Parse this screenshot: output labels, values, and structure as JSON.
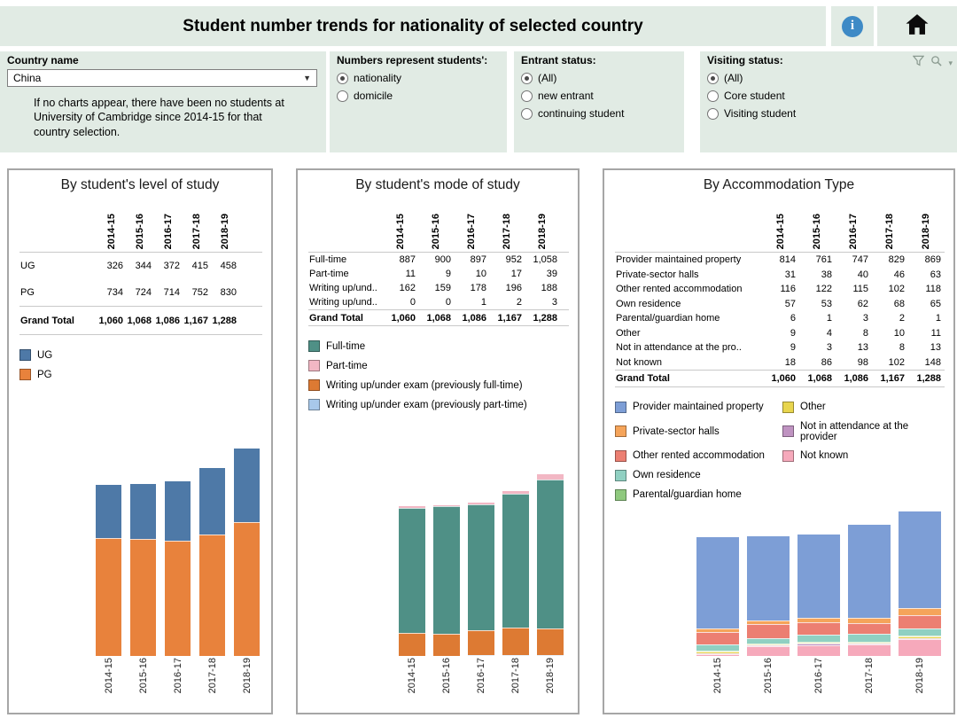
{
  "header": {
    "title": "Student number trends for nationality of selected country",
    "icons": [
      "info-icon",
      "home-icon"
    ]
  },
  "toolbar_icons": [
    "filter-icon",
    "search-icon",
    "chevron-down-icon"
  ],
  "filters": {
    "country": {
      "label": "Country name",
      "value": "China",
      "note": "If no charts appear, there have been no students at University of Cambridge since 2014-15 for that country selection."
    },
    "numbers_represent": {
      "label": "Numbers represent students':",
      "options": [
        {
          "label": "nationality",
          "selected": true
        },
        {
          "label": "domicile",
          "selected": false
        }
      ]
    },
    "entrant_status": {
      "label": "Entrant status:",
      "options": [
        {
          "label": "(All)",
          "selected": true
        },
        {
          "label": "new entrant",
          "selected": false
        },
        {
          "label": "continuing student",
          "selected": false
        }
      ]
    },
    "visiting_status": {
      "label": "Visiting status:",
      "options": [
        {
          "label": "(All)",
          "selected": true
        },
        {
          "label": "Core student",
          "selected": false
        },
        {
          "label": "Visiting student",
          "selected": false
        }
      ]
    }
  },
  "chart_data": [
    {
      "type": "bar",
      "stacked": true,
      "title": "By student's level of study",
      "categories": [
        "2014-15",
        "2015-16",
        "2016-17",
        "2017-18",
        "2018-19"
      ],
      "series": [
        {
          "name": "UG",
          "color": "#4e79a7",
          "values": [
            326,
            344,
            372,
            415,
            458
          ]
        },
        {
          "name": "PG",
          "color": "#e8823c",
          "values": [
            734,
            724,
            714,
            752,
            830
          ]
        }
      ],
      "grand_total_label": "Grand Total",
      "totals": [
        1060,
        1068,
        1086,
        1167,
        1288
      ],
      "stack_order": [
        1,
        0
      ],
      "legend_columns": 1,
      "ylim": [
        0,
        1288
      ],
      "grid": false,
      "legend_position": "above-chart"
    },
    {
      "type": "bar",
      "stacked": true,
      "title": "By student's mode of study",
      "categories": [
        "2014-15",
        "2015-16",
        "2016-17",
        "2017-18",
        "2018-19"
      ],
      "series": [
        {
          "name": "Full-time",
          "color": "#4f9086",
          "values": [
            887,
            900,
            897,
            952,
            1058
          ]
        },
        {
          "name": "Part-time",
          "color": "#f2b7c4",
          "values": [
            11,
            9,
            10,
            17,
            39
          ]
        },
        {
          "name": "Writing up/under exam (previously full-time)",
          "table_label": "Writing up/und..",
          "color": "#dd7a33",
          "values": [
            162,
            159,
            178,
            196,
            188
          ]
        },
        {
          "name": "Writing up/under exam (previously part-time)",
          "table_label": "Writing up/und..",
          "color": "#a8c8ea",
          "values": [
            0,
            0,
            1,
            2,
            3
          ]
        }
      ],
      "grand_total_label": "Grand Total",
      "totals": [
        1060,
        1068,
        1086,
        1167,
        1288
      ],
      "stack_order": [
        3,
        2,
        0,
        1
      ],
      "legend_columns": 1,
      "ylim": [
        0,
        1288
      ],
      "grid": false,
      "legend_position": "above-chart"
    },
    {
      "type": "bar",
      "stacked": true,
      "title": "By Accommodation Type",
      "categories": [
        "2014-15",
        "2015-16",
        "2016-17",
        "2017-18",
        "2018-19"
      ],
      "series": [
        {
          "name": "Provider maintained property",
          "color": "#7d9ed6",
          "values": [
            814,
            761,
            747,
            829,
            869
          ]
        },
        {
          "name": "Private-sector halls",
          "color": "#f5a45a",
          "values": [
            31,
            38,
            40,
            46,
            63
          ]
        },
        {
          "name": "Other rented accommodation",
          "color": "#ec7f72",
          "values": [
            116,
            122,
            115,
            102,
            118
          ]
        },
        {
          "name": "Own residence",
          "color": "#90d0c2",
          "values": [
            57,
            53,
            62,
            68,
            65
          ]
        },
        {
          "name": "Parental/guardian home",
          "color": "#8fc97e",
          "values": [
            6,
            1,
            3,
            2,
            1
          ]
        },
        {
          "name": "Other",
          "color": "#e8d54e",
          "values": [
            9,
            4,
            8,
            10,
            11
          ]
        },
        {
          "name": "Not in attendance at the provider",
          "table_label": "Not in attendance at the pro..",
          "color": "#bf93c1",
          "values": [
            9,
            3,
            13,
            8,
            13
          ]
        },
        {
          "name": "Not known",
          "color": "#f6a9bb",
          "values": [
            18,
            86,
            98,
            102,
            148
          ]
        }
      ],
      "grand_total_label": "Grand Total",
      "totals": [
        1060,
        1068,
        1086,
        1167,
        1288
      ],
      "stack_order": [
        7,
        6,
        5,
        4,
        3,
        2,
        1,
        0
      ],
      "legend_columns": 2,
      "legend_rows": 5,
      "ylim": [
        0,
        1288
      ],
      "grid": false,
      "legend_position": "above-chart"
    }
  ]
}
